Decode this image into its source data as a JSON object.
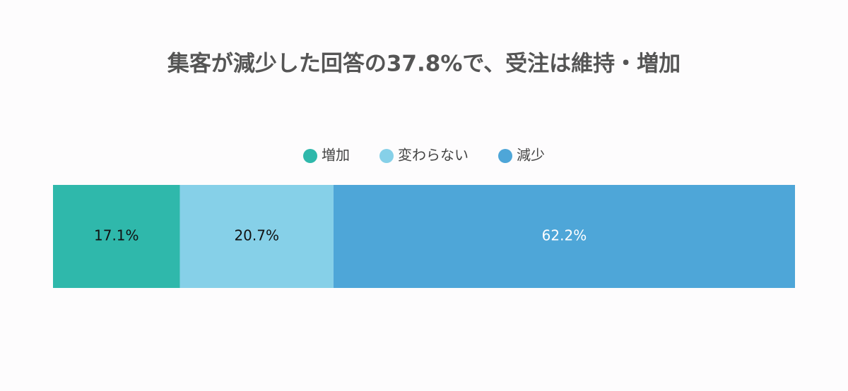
{
  "chart_data": {
    "type": "stacked-bar",
    "orientation": "horizontal",
    "title": "集客が減少した回答の37.8%で、受注は維持・増加",
    "categories": [
      null
    ],
    "xlim": [
      0,
      100
    ],
    "legend": "top",
    "series": [
      {
        "name": "増加",
        "color": "#2fb8ab",
        "label_color": "#111111",
        "values": [
          17.1
        ],
        "value_labels": [
          "17.1%"
        ]
      },
      {
        "name": "変わらない",
        "color": "#86d0e8",
        "label_color": "#111111",
        "values": [
          20.7
        ],
        "value_labels": [
          "20.7%"
        ]
      },
      {
        "name": "減少",
        "color": "#4ea6d8",
        "label_color": "#ffffff",
        "values": [
          62.2
        ],
        "value_labels": [
          "62.2%"
        ]
      }
    ]
  }
}
